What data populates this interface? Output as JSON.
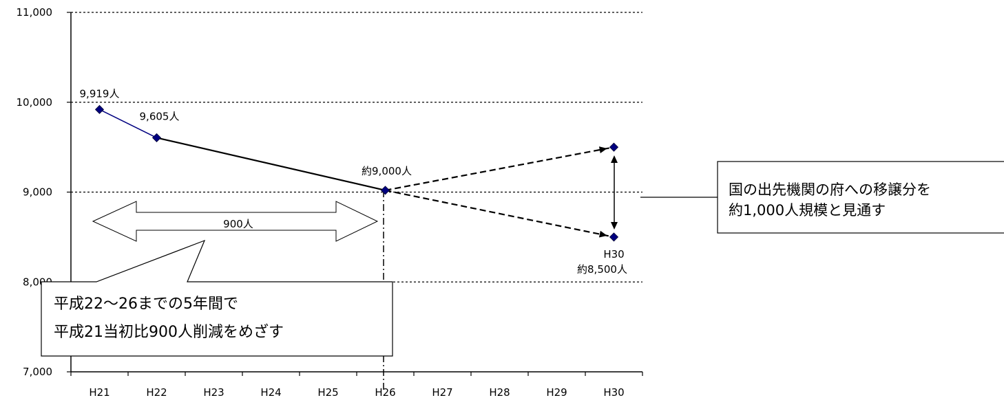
{
  "chart_data": {
    "type": "line",
    "categories": [
      "H21",
      "H22",
      "H23",
      "H24",
      "H25",
      "H26",
      "H27",
      "H28",
      "H29",
      "H30"
    ],
    "ylim": [
      7000,
      11000
    ],
    "yticks": [
      7000,
      8000,
      9000,
      10000,
      11000
    ],
    "ytick_labels": [
      "7,000",
      "8,000",
      "9,000",
      "10,000",
      "11,000"
    ],
    "grid": "dotted-horizontal",
    "colors": {
      "line_actual": "#000080",
      "line_plan": "#000000",
      "marker": "#000080"
    },
    "series": [
      {
        "values": [
          9919,
          9605,
          null,
          null,
          null,
          9020,
          null,
          null,
          null,
          null
        ],
        "style": "solid"
      },
      {
        "values": [
          null,
          null,
          null,
          null,
          null,
          9020,
          null,
          null,
          null,
          9500
        ],
        "style": "dashed"
      },
      {
        "values": [
          null,
          null,
          null,
          null,
          null,
          9020,
          null,
          null,
          null,
          8500
        ],
        "style": "dashed"
      }
    ],
    "data_labels": [
      {
        "text": "9,919人",
        "category": "H21",
        "value": 9919
      },
      {
        "text": "9,605人",
        "category": "H22",
        "value": 9605
      },
      {
        "text": "約9,000人",
        "category": "H26",
        "value": 9020
      },
      {
        "text": "H30",
        "category": "H30",
        "value": 8500
      },
      {
        "text": "約8,500人",
        "category": "H30",
        "value": 8500
      }
    ],
    "annotations": {
      "span_arrow_label": "900人",
      "callout_lines": [
        "平成22～26までの5年間で",
        "平成21当初比900人削減をめざす"
      ],
      "note_lines": [
        "国の出先機関の府への移譲分を",
        "約1,000人規模と見通す"
      ]
    }
  }
}
